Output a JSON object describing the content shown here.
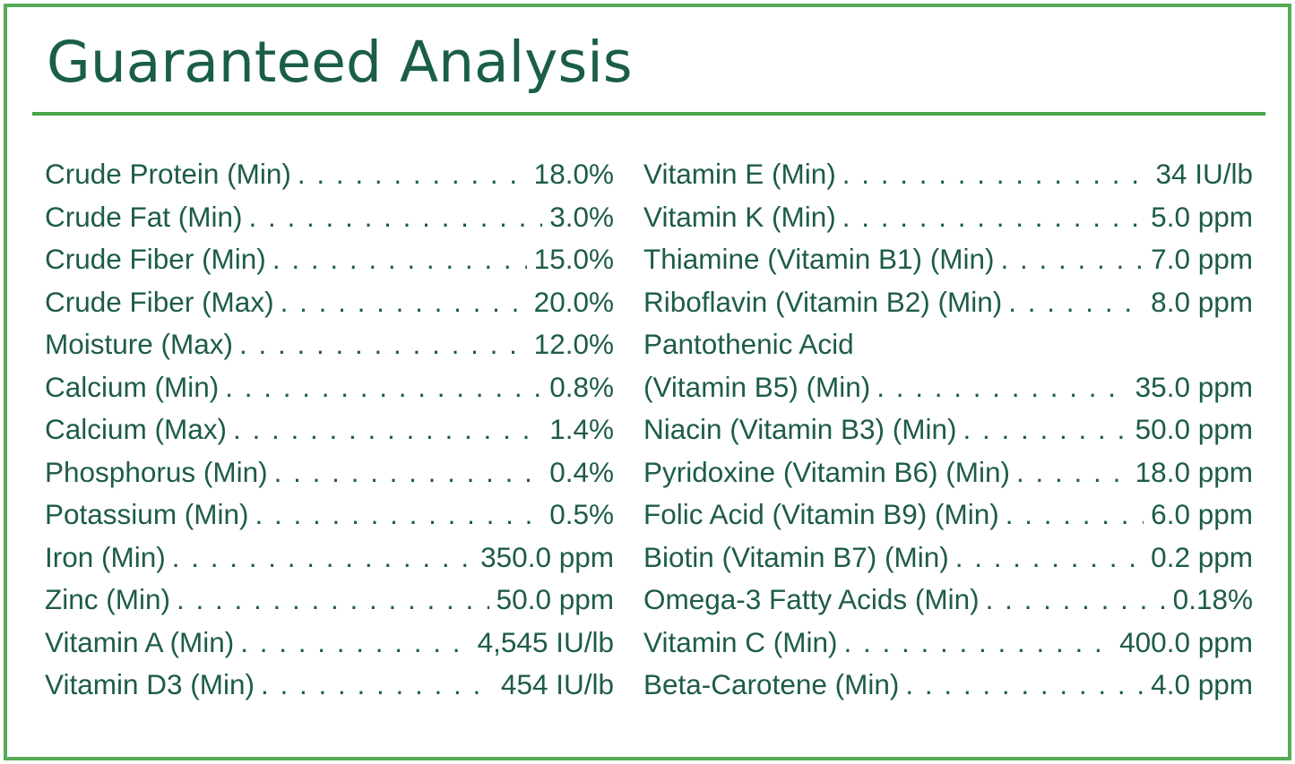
{
  "title": "Guaranteed Analysis",
  "colors": {
    "text_green": "#1d5c46",
    "accent_green": "#47a449",
    "border_green": "#56ab57",
    "background": "#ffffff"
  },
  "analysis": {
    "left": [
      {
        "label": "Crude Protein (Min)",
        "value": "18.0%"
      },
      {
        "label": "Crude Fat (Min)",
        "value": "3.0%"
      },
      {
        "label": "Crude Fiber (Min)",
        "value": "15.0%"
      },
      {
        "label": "Crude Fiber (Max)",
        "value": "20.0%"
      },
      {
        "label": "Moisture (Max)",
        "value": "12.0%"
      },
      {
        "label": "Calcium (Min)",
        "value": "0.8%"
      },
      {
        "label": "Calcium (Max)",
        "value": "1.4%"
      },
      {
        "label": "Phosphorus (Min)",
        "value": "0.4%"
      },
      {
        "label": "Potassium (Min)",
        "value": "0.5%"
      },
      {
        "label": "Iron (Min)",
        "value": "350.0 ppm"
      },
      {
        "label": "Zinc (Min)",
        "value": "50.0 ppm"
      },
      {
        "label": "Vitamin A (Min)",
        "value": "4,545 IU/lb"
      },
      {
        "label": "Vitamin D3 (Min)",
        "value": "454 IU/lb"
      }
    ],
    "right": [
      {
        "label": "Vitamin E (Min)",
        "value": "34 IU/lb"
      },
      {
        "label": "Vitamin K (Min)",
        "value": "5.0 ppm"
      },
      {
        "label": "Thiamine (Vitamin B1) (Min)",
        "value": "7.0 ppm"
      },
      {
        "label": "Riboflavin (Vitamin B2) (Min)",
        "value": "8.0 ppm"
      },
      {
        "label": "Pantothenic Acid",
        "value": ""
      },
      {
        "label": "(Vitamin B5) (Min)",
        "value": "35.0 ppm"
      },
      {
        "label": "Niacin (Vitamin B3) (Min)",
        "value": "50.0 ppm"
      },
      {
        "label": "Pyridoxine (Vitamin B6) (Min)",
        "value": "18.0 ppm"
      },
      {
        "label": "Folic Acid (Vitamin B9) (Min)",
        "value": "6.0 ppm"
      },
      {
        "label": "Biotin (Vitamin B7) (Min)",
        "value": "0.2 ppm"
      },
      {
        "label": "Omega-3 Fatty Acids (Min)",
        "value": "0.18%"
      },
      {
        "label": "Vitamin C (Min)",
        "value": "400.0 ppm"
      },
      {
        "label": "Beta-Carotene (Min)",
        "value": "4.0 ppm"
      }
    ]
  }
}
